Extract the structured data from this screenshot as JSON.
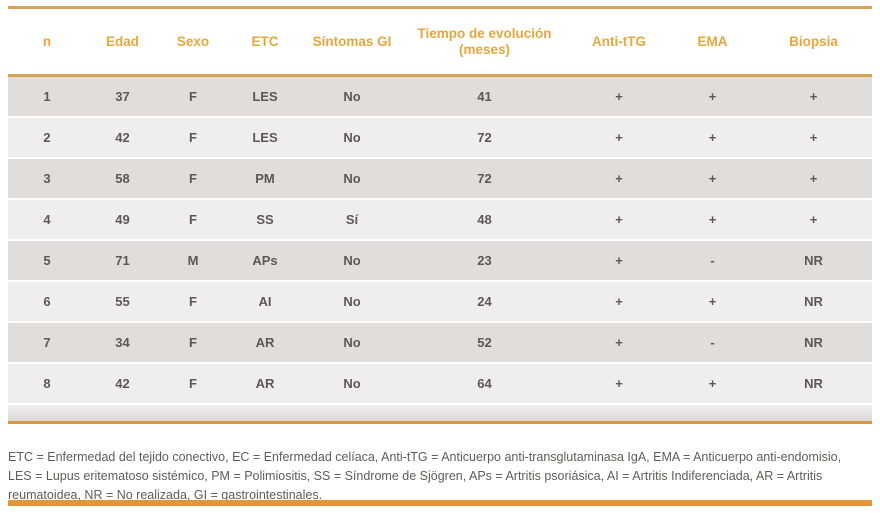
{
  "table": {
    "columns": [
      {
        "key": "n",
        "label": "n",
        "sub": ""
      },
      {
        "key": "edad",
        "label": "Edad",
        "sub": ""
      },
      {
        "key": "sexo",
        "label": "Sexo",
        "sub": ""
      },
      {
        "key": "etc",
        "label": "ETC",
        "sub": ""
      },
      {
        "key": "sintomas_gi",
        "label": "Síntomas GI",
        "sub": ""
      },
      {
        "key": "tiempo_evolucion",
        "label": "Tiempo de evolución",
        "sub": "(meses)"
      },
      {
        "key": "anti_ttg",
        "label": "Anti-tTG",
        "sub": ""
      },
      {
        "key": "ema",
        "label": "EMA",
        "sub": ""
      },
      {
        "key": "biopsia",
        "label": "Biopsia",
        "sub": ""
      }
    ],
    "rows": [
      [
        "1",
        "37",
        "F",
        "LES",
        "No",
        "41",
        "+",
        "+",
        "+"
      ],
      [
        "2",
        "42",
        "F",
        "LES",
        "No",
        "72",
        "+",
        "+",
        "+"
      ],
      [
        "3",
        "58",
        "F",
        "PM",
        "No",
        "72",
        "+",
        "+",
        "+"
      ],
      [
        "4",
        "49",
        "F",
        "SS",
        "Sí",
        "48",
        "+",
        "+",
        "+"
      ],
      [
        "5",
        "71",
        "M",
        "APs",
        "No",
        "23",
        "+",
        "-",
        "NR"
      ],
      [
        "6",
        "55",
        "F",
        "AI",
        "No",
        "24",
        "+",
        "+",
        "NR"
      ],
      [
        "7",
        "34",
        "F",
        "AR",
        "No",
        "52",
        "+",
        "-",
        "NR"
      ],
      [
        "8",
        "42",
        "F",
        "AR",
        "No",
        "64",
        "+",
        "+",
        "NR"
      ]
    ]
  },
  "footnote": "ETC = Enfermedad del tejido conectivo, EC = Enfermedad celíaca, Anti-tTG = Anticuerpo anti-transglutaminasa IgA, EMA = Anticuerpo anti-endomisio, LES = Lupus eritematoso sistémico, PM = Polimiositis, SS = Síndrome de Sjögren, APs = Artritis psoriásica, AI = Artritis Indiferenciada, AR = Artritis reumatoidea, NR = No realizada, GI = gastrointestinales.",
  "colors": {
    "accent_gold": "#D4A355",
    "accent_orange": "#E2953B",
    "header_text": "#E5A63E",
    "row_odd": "#E0DDDA",
    "row_even": "#F0EEEC",
    "cell_text": "#5C5855"
  }
}
